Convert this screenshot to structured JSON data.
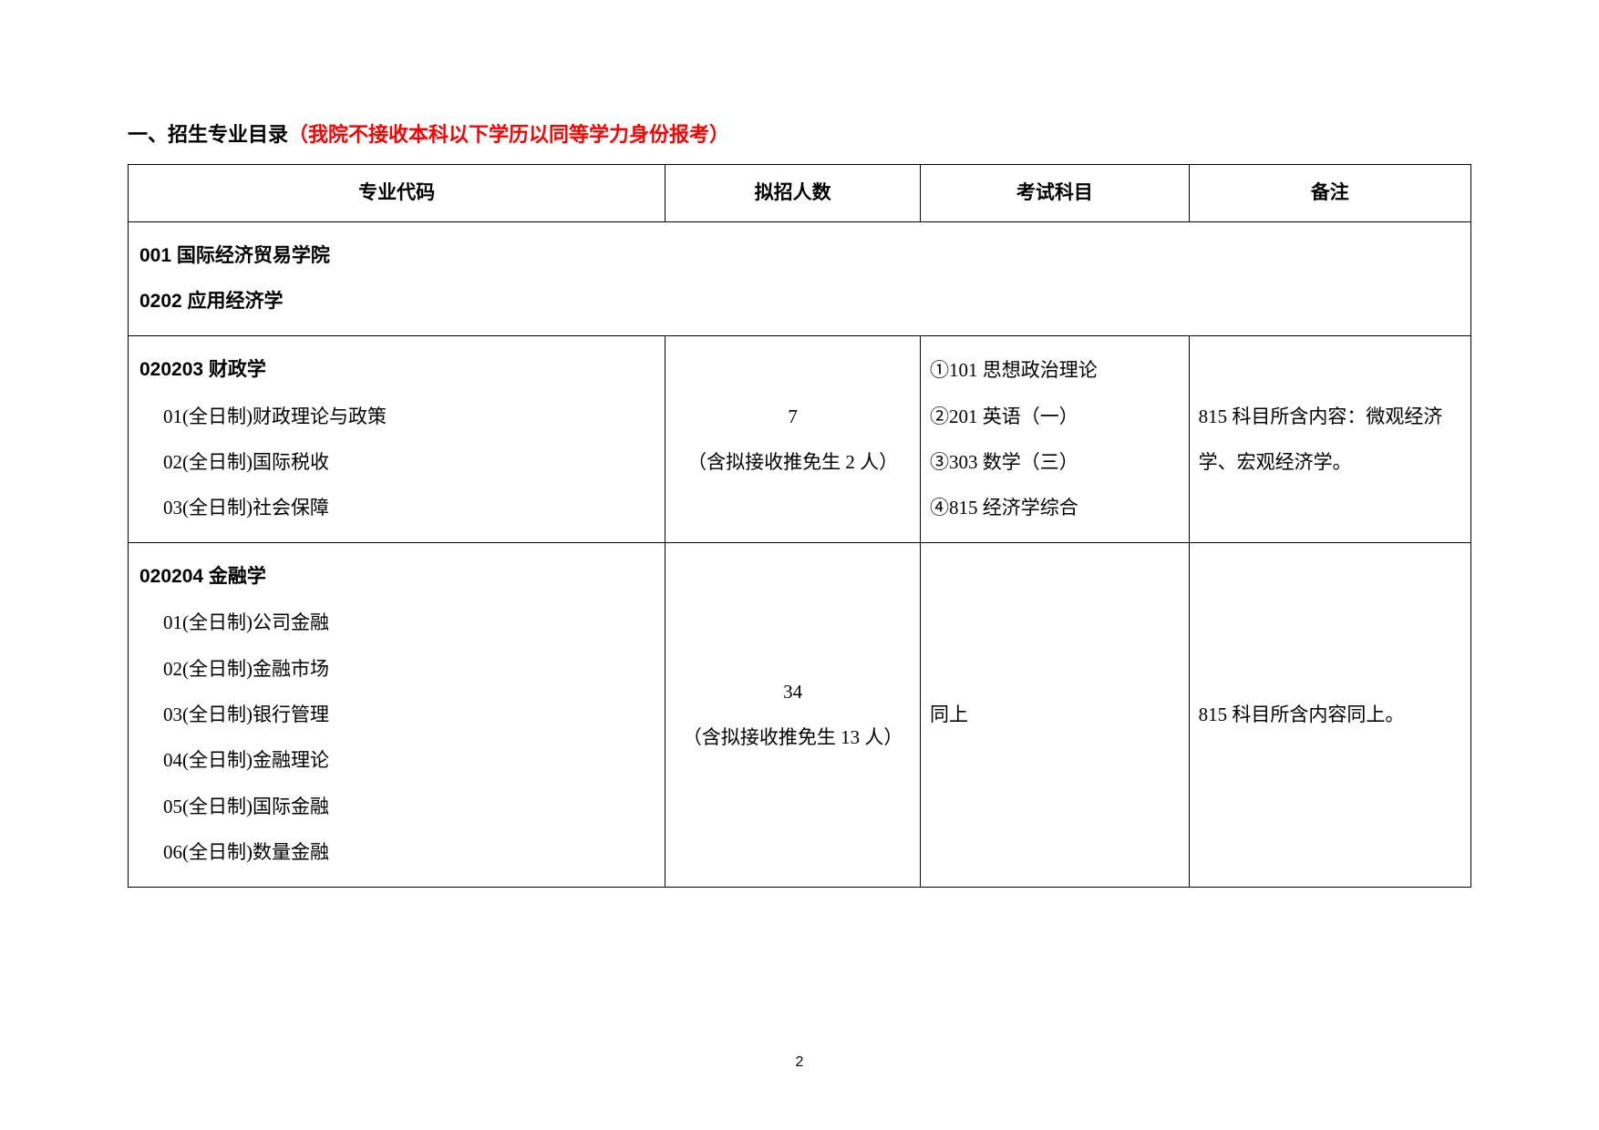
{
  "page": {
    "number": "2"
  },
  "heading": {
    "prefix": "一、招生专业目录",
    "highlight": "（我院不接收本科以下学历以同等学力身份报考）"
  },
  "table": {
    "headers": {
      "major_code": "专业代码",
      "quota": "拟招人数",
      "subjects": "考试科目",
      "notes": "备注"
    },
    "school": "001 国际经济贸易学院",
    "discipline": "0202 应用经济学",
    "rows": [
      {
        "title": "020203  财政学",
        "directions": [
          "01(全日制)财政理论与政策",
          "02(全日制)国际税收",
          "03(全日制)社会保障"
        ],
        "quota_main": "7",
        "quota_sub": "（含拟接收推免生 2 人）",
        "subjects": [
          "①101 思想政治理论",
          "②201 英语（一）",
          "③303 数学（三）",
          "④815 经济学综合"
        ],
        "notes": "815 科目所含内容：微观经济学、宏观经济学。"
      },
      {
        "title": "020204 金融学",
        "directions": [
          "01(全日制)公司金融",
          "02(全日制)金融市场",
          "03(全日制)银行管理",
          "04(全日制)金融理论",
          "05(全日制)国际金融",
          "06(全日制)数量金融"
        ],
        "quota_main": "34",
        "quota_sub": "（含拟接收推免生 13 人）",
        "subjects_same": "同上",
        "notes": "815 科目所含内容同上。"
      }
    ]
  }
}
